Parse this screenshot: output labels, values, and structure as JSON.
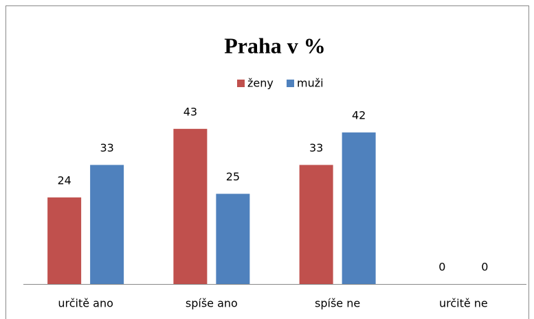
{
  "chart_data": {
    "type": "bar",
    "title": "Praha v %",
    "categories": [
      "určitě ano",
      "spíše ano",
      "spíše ne",
      "určitě ne"
    ],
    "series": [
      {
        "name": "ženy",
        "color": "#c0504d",
        "values": [
          24,
          43,
          33,
          0
        ]
      },
      {
        "name": "muži",
        "color": "#4f81bd",
        "values": [
          33,
          25,
          42,
          0
        ]
      }
    ],
    "ylim": [
      0,
      50
    ],
    "legend": "top"
  }
}
